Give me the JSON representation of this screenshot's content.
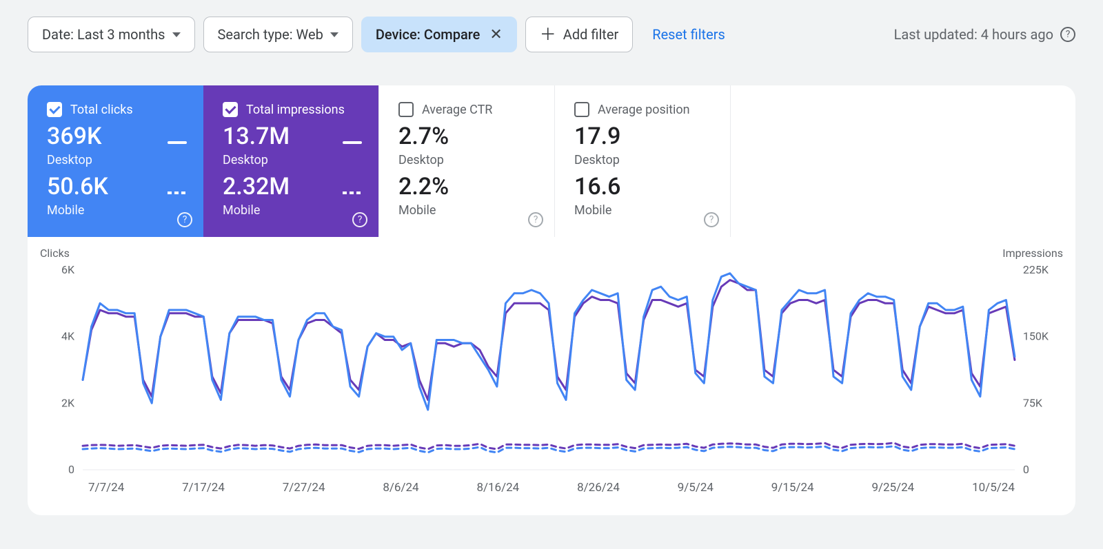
{
  "filters": {
    "date": {
      "label": "Date: Last 3 months"
    },
    "searchtype": {
      "label": "Search type: Web"
    },
    "device": {
      "label": "Device: Compare"
    },
    "add": {
      "label": "Add filter"
    },
    "reset": {
      "label": "Reset filters"
    },
    "updated": {
      "label": "Last updated: 4 hours ago"
    }
  },
  "tiles": [
    {
      "title": "Total clicks",
      "checked": true,
      "val1": "369K",
      "sub1": "Desktop",
      "val2": "50.6K",
      "sub2": "Mobile",
      "bg": "#4285f4"
    },
    {
      "title": "Total impressions",
      "checked": true,
      "val1": "13.7M",
      "sub1": "Desktop",
      "val2": "2.32M",
      "sub2": "Mobile",
      "bg": "#673ab7"
    },
    {
      "title": "Average CTR",
      "checked": false,
      "val1": "2.7%",
      "sub1": "Desktop",
      "val2": "2.2%",
      "sub2": "Mobile",
      "bg": "#ffffff"
    },
    {
      "title": "Average position",
      "checked": false,
      "val1": "17.9",
      "sub1": "Desktop",
      "val2": "16.6",
      "sub2": "Mobile",
      "bg": "#ffffff"
    }
  ],
  "chart": {
    "left_label": "Clicks",
    "right_label": "Impressions",
    "y_left_ticks": [
      "6K",
      "4K",
      "2K",
      "0"
    ],
    "y_right_ticks": [
      "225K",
      "150K",
      "75K",
      "0"
    ],
    "x_ticks": [
      "7/7/24",
      "7/17/24",
      "7/27/24",
      "8/6/24",
      "8/16/24",
      "8/26/24",
      "9/5/24",
      "9/15/24",
      "9/25/24",
      "10/5/24"
    ],
    "ylim_left": [
      0,
      6000
    ],
    "colors": {
      "clicks_desktop": "#4285f4",
      "impressions_desktop": "#673ab7",
      "clicks_mobile": "#4285f4",
      "impressions_mobile": "#673ab7",
      "gridline": "#e8eaed",
      "tick_text": "#5f6368"
    },
    "line_width": 3,
    "series_desktop_clicks": [
      2700,
      4300,
      5000,
      4800,
      4800,
      4700,
      4700,
      2600,
      2000,
      4000,
      4800,
      4800,
      4800,
      4700,
      4600,
      2700,
      2100,
      4100,
      4600,
      4600,
      4600,
      4500,
      4500,
      2700,
      2200,
      3900,
      4500,
      4700,
      4700,
      4300,
      4200,
      2500,
      2200,
      3700,
      4100,
      4000,
      4000,
      3600,
      3800,
      2500,
      1800,
      3900,
      3900,
      3900,
      3800,
      3800,
      3400,
      3000,
      2500,
      5000,
      5300,
      5300,
      5400,
      5300,
      5000,
      2600,
      2100,
      4700,
      5100,
      5400,
      5300,
      5200,
      5300,
      2700,
      2400,
      4600,
      5400,
      5500,
      5200,
      5100,
      5200,
      2900,
      2600,
      5100,
      5800,
      5900,
      5600,
      5500,
      5400,
      2800,
      2600,
      4800,
      5100,
      5400,
      5300,
      5300,
      5400,
      2800,
      2600,
      4700,
      5100,
      5300,
      5200,
      5200,
      5100,
      2800,
      2400,
      4300,
      5000,
      5000,
      4800,
      4800,
      4900,
      2700,
      2200,
      4800,
      5000,
      5100,
      3400
    ],
    "series_desktop_impressions": [
      2700,
      4200,
      4800,
      4700,
      4700,
      4600,
      4600,
      2700,
      2200,
      4000,
      4700,
      4700,
      4700,
      4600,
      4600,
      2800,
      2300,
      4100,
      4500,
      4500,
      4500,
      4500,
      4400,
      2800,
      2400,
      3900,
      4400,
      4500,
      4500,
      4300,
      4100,
      2700,
      2400,
      3700,
      4100,
      3900,
      3900,
      3700,
      3800,
      2700,
      2100,
      3800,
      3800,
      3700,
      3800,
      3800,
      3600,
      3100,
      2800,
      4700,
      5000,
      5000,
      5000,
      5000,
      4800,
      2800,
      2400,
      4600,
      5000,
      5200,
      5100,
      5100,
      5000,
      2900,
      2600,
      4500,
      5100,
      5100,
      5000,
      4900,
      5000,
      3000,
      2800,
      4900,
      5500,
      5700,
      5600,
      5400,
      5400,
      3000,
      2800,
      4700,
      5000,
      5100,
      5100,
      5000,
      5100,
      3000,
      2800,
      4600,
      5000,
      5100,
      5100,
      5000,
      5000,
      3000,
      2600,
      4300,
      4900,
      4800,
      4700,
      4700,
      4800,
      2900,
      2500,
      4700,
      4800,
      4900,
      3300
    ],
    "series_mobile_clicks": [
      620,
      640,
      650,
      640,
      620,
      630,
      640,
      600,
      560,
      620,
      640,
      630,
      620,
      640,
      650,
      580,
      540,
      610,
      650,
      640,
      620,
      640,
      630,
      580,
      540,
      620,
      650,
      660,
      640,
      640,
      640,
      570,
      530,
      620,
      640,
      640,
      620,
      640,
      660,
      570,
      520,
      630,
      640,
      620,
      620,
      640,
      680,
      560,
      520,
      660,
      660,
      650,
      650,
      640,
      660,
      580,
      540,
      640,
      660,
      660,
      650,
      650,
      670,
      590,
      550,
      640,
      650,
      660,
      650,
      660,
      680,
      600,
      560,
      660,
      680,
      690,
      680,
      660,
      660,
      590,
      560,
      660,
      680,
      680,
      670,
      680,
      700,
      600,
      560,
      650,
      670,
      680,
      670,
      680,
      710,
      600,
      560,
      650,
      670,
      670,
      660,
      660,
      680,
      590,
      550,
      650,
      660,
      670,
      620
    ],
    "series_mobile_impressions": [
      720,
      740,
      750,
      740,
      720,
      730,
      740,
      700,
      660,
      720,
      740,
      730,
      720,
      740,
      750,
      680,
      640,
      710,
      750,
      740,
      720,
      740,
      730,
      680,
      640,
      720,
      750,
      760,
      740,
      740,
      740,
      670,
      630,
      720,
      740,
      740,
      720,
      740,
      760,
      670,
      620,
      730,
      740,
      720,
      720,
      740,
      780,
      660,
      620,
      760,
      760,
      750,
      750,
      740,
      760,
      680,
      640,
      740,
      760,
      760,
      750,
      750,
      770,
      690,
      650,
      740,
      750,
      760,
      750,
      760,
      780,
      700,
      660,
      760,
      780,
      790,
      780,
      760,
      760,
      690,
      660,
      760,
      780,
      780,
      770,
      780,
      800,
      700,
      660,
      750,
      770,
      780,
      770,
      780,
      810,
      700,
      660,
      750,
      770,
      770,
      760,
      760,
      780,
      690,
      650,
      750,
      760,
      770,
      720
    ]
  }
}
